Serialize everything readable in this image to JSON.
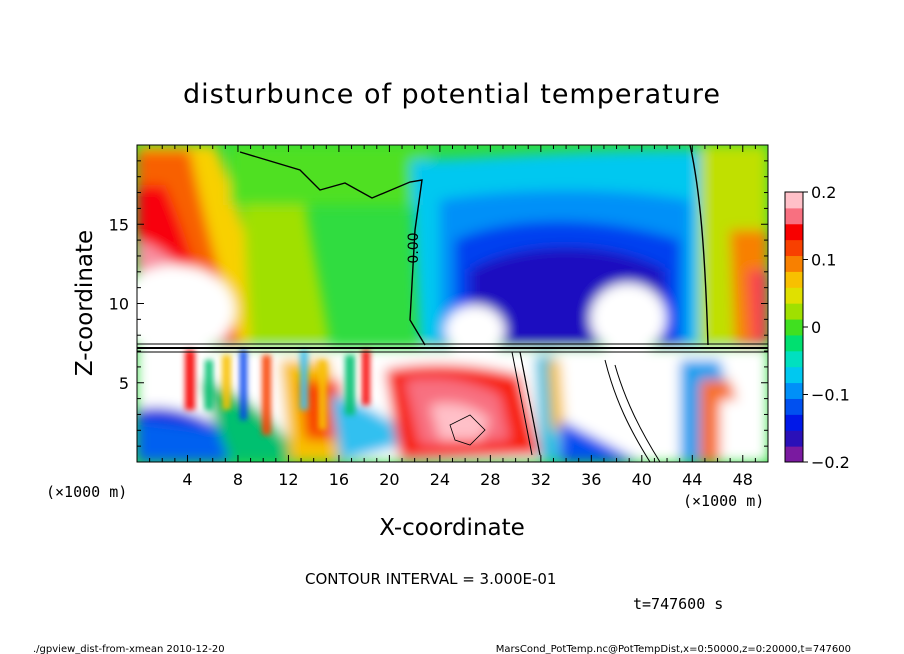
{
  "chart_data": {
    "type": "heatmap",
    "title": "disturbunce of potential temperature",
    "xlabel": "X-coordinate",
    "ylabel": "Z-coordinate",
    "x_unit": "(×1000 m)",
    "y_unit": "(×1000 m)",
    "xlim": [
      0,
      50
    ],
    "ylim": [
      0,
      20
    ],
    "x_ticks": [
      4,
      8,
      12,
      16,
      20,
      24,
      28,
      32,
      36,
      40,
      44,
      48
    ],
    "y_ticks": [
      5,
      10,
      15
    ],
    "colorbar": {
      "range": [
        -0.2,
        0.2
      ],
      "tick_values": [
        0.2,
        0.1,
        0,
        -0.1,
        -0.2
      ],
      "tick_labels": [
        "0.2",
        "0.1",
        "0",
        "−0.1",
        "−0.2"
      ],
      "colors": [
        "#7a1aa0",
        "#2a10b8",
        "#0018e8",
        "#0050f0",
        "#0090f8",
        "#00c8f0",
        "#00e0c0",
        "#00e070",
        "#40e020",
        "#a0e000",
        "#e0e000",
        "#f8c000",
        "#f88000",
        "#f84000",
        "#f80000",
        "#f87080",
        "#ffc0c8"
      ]
    },
    "contour_label": "0.00",
    "contour_interval_text": "CONTOUR INTERVAL = 3.000E-01",
    "time_text": "t=747600 s"
  },
  "footer": {
    "left": "./gpview_dist-from-xmean  2010-12-20",
    "right": "MarsCond_PotTemp.nc@PotTempDist,x=0:50000,z=0:20000,t=747600"
  }
}
